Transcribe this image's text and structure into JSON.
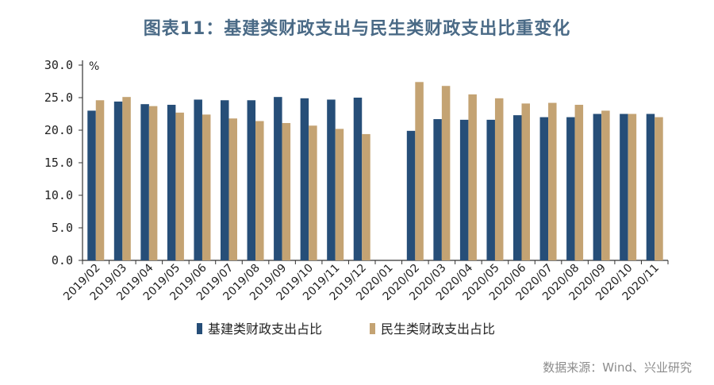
{
  "chart_data": {
    "type": "bar",
    "title": "图表11：基建类财政支出与民生类财政支出比重变化",
    "unit": "%",
    "source": "数据来源：Wind、兴业研究",
    "categories": [
      "2019/02",
      "2019/03",
      "2019/04",
      "2019/05",
      "2019/06",
      "2019/07",
      "2019/08",
      "2019/09",
      "2019/10",
      "2019/11",
      "2019/12",
      "2020/01",
      "2020/02",
      "2020/03",
      "2020/04",
      "2020/05",
      "2020/06",
      "2020/07",
      "2020/08",
      "2020/09",
      "2020/10",
      "2020/11"
    ],
    "yticks": [
      "0.0",
      "5.0",
      "10.0",
      "15.0",
      "20.0",
      "25.0",
      "30.0"
    ],
    "ylim": [
      0,
      30
    ],
    "series": [
      {
        "name": "基建类财政支出占比",
        "color": "#264e78",
        "values": [
          23.0,
          24.4,
          24.0,
          23.9,
          24.7,
          24.6,
          24.6,
          25.1,
          24.9,
          24.7,
          25.0,
          null,
          19.9,
          21.7,
          21.6,
          21.6,
          22.3,
          22.0,
          22.0,
          22.5,
          22.5,
          22.5
        ]
      },
      {
        "name": "民生类财政支出占比",
        "color": "#c4a373",
        "values": [
          24.6,
          25.1,
          23.7,
          22.7,
          22.4,
          21.8,
          21.4,
          21.1,
          20.7,
          20.2,
          19.4,
          null,
          27.4,
          26.8,
          25.5,
          24.9,
          24.1,
          24.2,
          23.9,
          23.0,
          22.5,
          22.0
        ]
      }
    ],
    "grid": false,
    "legend": "bottom-center"
  }
}
